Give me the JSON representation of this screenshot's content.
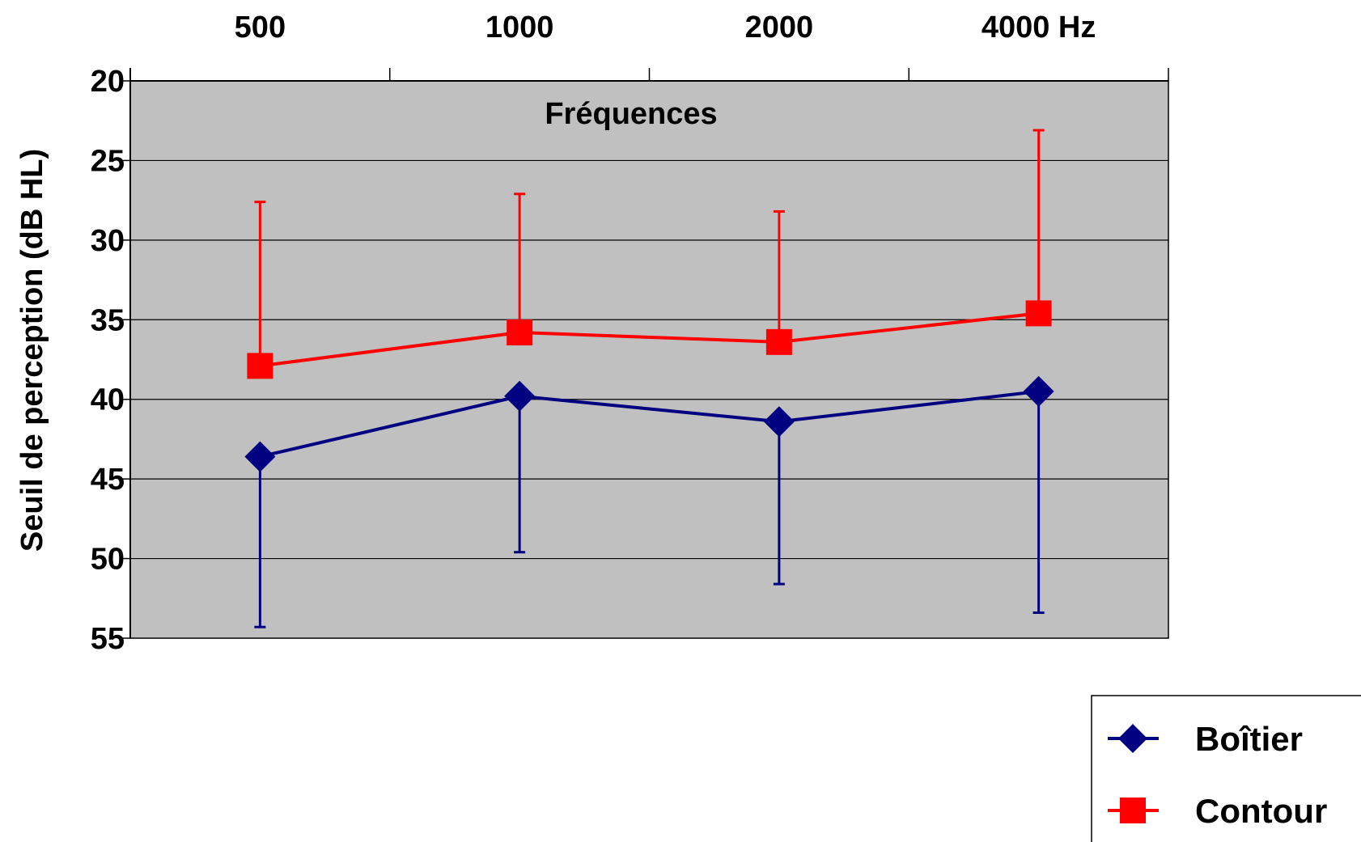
{
  "colors": {
    "plot_background": "#c0c0c0",
    "gridline": "#000000",
    "series_boitier": "#000080",
    "series_contour": "#ff0000"
  },
  "chart_data": {
    "type": "line",
    "title": "Fréquences",
    "xlabel": "",
    "ylabel": "Seuil de perception (dB HL)",
    "categories": [
      "500",
      "1000",
      "2000",
      "4000 Hz"
    ],
    "x_axis_position": "top",
    "y_axis_inverted": true,
    "ylim": [
      20,
      55
    ],
    "yticks": [
      20,
      25,
      30,
      35,
      40,
      45,
      50,
      55
    ],
    "grid": true,
    "legend_position": "bottom-right",
    "series": [
      {
        "name": "Boîtier",
        "marker": "diamond",
        "color": "#000080",
        "values": [
          43.6,
          39.8,
          41.4,
          39.5
        ],
        "error_high": [
          54.3,
          49.6,
          51.6,
          53.4
        ],
        "error_low": null
      },
      {
        "name": "Contour",
        "marker": "square",
        "color": "#ff0000",
        "values": [
          37.9,
          35.8,
          36.4,
          34.6
        ],
        "error_low": [
          27.6,
          27.1,
          28.2,
          23.1
        ],
        "error_high": null
      }
    ]
  }
}
